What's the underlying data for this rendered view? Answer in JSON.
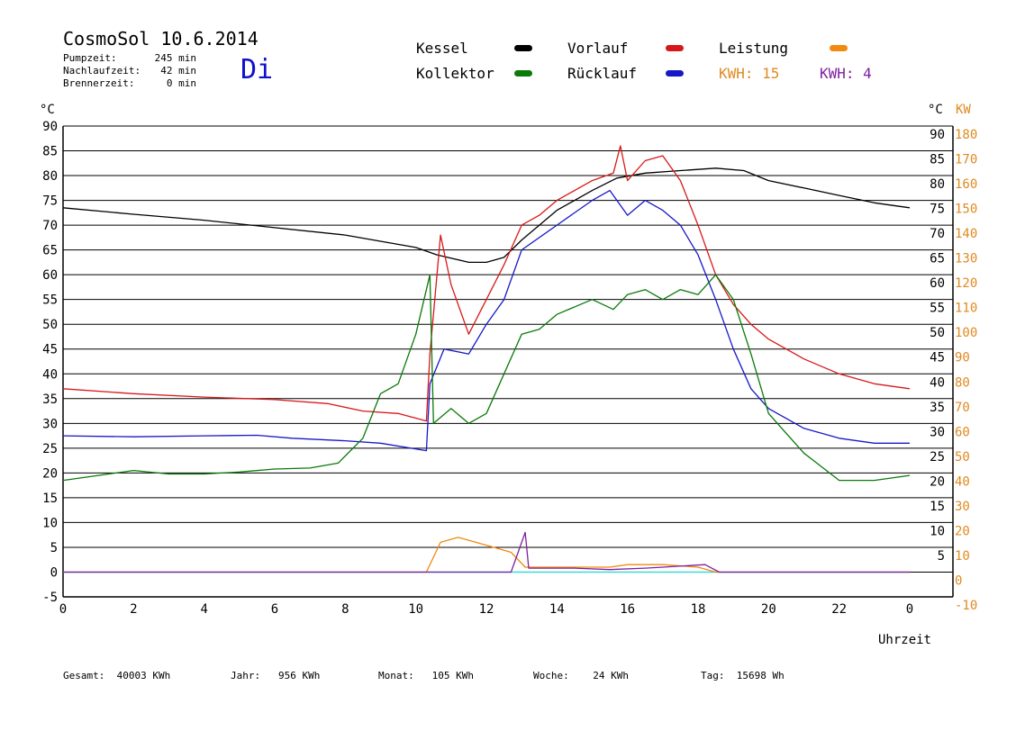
{
  "header": {
    "title": "CosmoSol 10.6.2014",
    "day": "Di",
    "pump_label": "Pumpzeit:",
    "pump_value": "245 min",
    "nachlauf_label": "Nachlaufzeit:",
    "nachlauf_value": "42 min",
    "brenner_label": "Brennerzeit:",
    "brenner_value": "0 min"
  },
  "legend": {
    "kessel": "Kessel",
    "kollektor": "Kollektor",
    "vorlauf": "Vorlauf",
    "ruecklauf": "Rücklauf",
    "leistung": "Leistung",
    "kwh_a": "KWH: 15",
    "kwh_b": "KWH: 4"
  },
  "colors": {
    "kessel": "#000000",
    "kollektor": "#0a7a0a",
    "vorlauf": "#d81818",
    "ruecklauf": "#1818c8",
    "leistung": "#f08a10",
    "kwh_b": "#8020a0",
    "baseline": "#40d8d8",
    "right_axis_kw": "#e08a20"
  },
  "footer": {
    "gesamt": "Gesamt:  40003 KWh",
    "jahr": "Jahr:   956 KWh",
    "monat": "Monat:   105 KWh",
    "woche": "Woche:    24 KWh",
    "tag": "Tag:  15698 Wh"
  },
  "chart_data": {
    "type": "line",
    "xlabel": "Uhrzeit",
    "ylabel_left": "°C",
    "ylabel_right_c": "°C",
    "ylabel_right_kw": "KW",
    "xlim": [
      0,
      24
    ],
    "ylim": [
      -5,
      90
    ],
    "x_ticks": [
      "0",
      "2",
      "4",
      "6",
      "8",
      "10",
      "12",
      "14",
      "16",
      "18",
      "20",
      "22",
      "0"
    ],
    "y_ticks_left": [
      "90",
      "85",
      "80",
      "75",
      "70",
      "65",
      "60",
      "55",
      "50",
      "45",
      "40",
      "35",
      "30",
      "25",
      "20",
      "15",
      "10",
      "5",
      "0",
      "-5"
    ],
    "y_ticks_right_c": [
      "90",
      "85",
      "80",
      "75",
      "70",
      "65",
      "60",
      "55",
      "50",
      "45",
      "40",
      "35",
      "30",
      "25",
      "20",
      "15",
      "10",
      "5"
    ],
    "y_ticks_right_kw": [
      "180",
      "170",
      "160",
      "150",
      "140",
      "130",
      "120",
      "110",
      "100",
      "90",
      "80",
      "70",
      "60",
      "50",
      "40",
      "30",
      "20",
      "10",
      "0",
      "-10"
    ],
    "grid": "horizontal",
    "series": [
      {
        "name": "Kessel",
        "color": "#000000",
        "points": [
          [
            0,
            73.5
          ],
          [
            2,
            72.2
          ],
          [
            4,
            71
          ],
          [
            6,
            69.5
          ],
          [
            8,
            68
          ],
          [
            10,
            65.5
          ],
          [
            10.6,
            64
          ],
          [
            11.5,
            62.5
          ],
          [
            12,
            62.5
          ],
          [
            12.5,
            63.5
          ],
          [
            13,
            67
          ],
          [
            13.5,
            70
          ],
          [
            14,
            73
          ],
          [
            15,
            77
          ],
          [
            15.7,
            79.5
          ],
          [
            16.5,
            80.5
          ],
          [
            17.5,
            81
          ],
          [
            18.5,
            81.5
          ],
          [
            19.3,
            81
          ],
          [
            20,
            79
          ],
          [
            21,
            77.5
          ],
          [
            22,
            76
          ],
          [
            23,
            74.5
          ],
          [
            24,
            73.5
          ]
        ]
      },
      {
        "name": "Vorlauf",
        "color": "#d81818",
        "points": [
          [
            0,
            37
          ],
          [
            2,
            36
          ],
          [
            4,
            35.3
          ],
          [
            6,
            34.8
          ],
          [
            7.5,
            34
          ],
          [
            8.5,
            32.5
          ],
          [
            9.5,
            32
          ],
          [
            10.3,
            30.5
          ],
          [
            10.4,
            44
          ],
          [
            10.7,
            68
          ],
          [
            11,
            58
          ],
          [
            11.5,
            48
          ],
          [
            12,
            55
          ],
          [
            12.5,
            62
          ],
          [
            13,
            70
          ],
          [
            13.5,
            72
          ],
          [
            14,
            75
          ],
          [
            15,
            79
          ],
          [
            15.6,
            80.5
          ],
          [
            15.8,
            86
          ],
          [
            16,
            79
          ],
          [
            16.5,
            83
          ],
          [
            17,
            84
          ],
          [
            17.5,
            79
          ],
          [
            18,
            70
          ],
          [
            18.5,
            60
          ],
          [
            19,
            54
          ],
          [
            19.5,
            50
          ],
          [
            20,
            47
          ],
          [
            21,
            43
          ],
          [
            22,
            40
          ],
          [
            23,
            38
          ],
          [
            24,
            37
          ]
        ]
      },
      {
        "name": "Rücklauf",
        "color": "#1818c8",
        "points": [
          [
            0,
            27.5
          ],
          [
            2,
            27.3
          ],
          [
            4,
            27.5
          ],
          [
            5.5,
            27.6
          ],
          [
            6.5,
            27
          ],
          [
            8,
            26.5
          ],
          [
            9,
            26
          ],
          [
            10.3,
            24.5
          ],
          [
            10.4,
            38
          ],
          [
            10.8,
            45
          ],
          [
            11.5,
            44
          ],
          [
            12,
            50
          ],
          [
            12.5,
            55
          ],
          [
            13,
            65
          ],
          [
            14,
            70
          ],
          [
            15,
            75
          ],
          [
            15.5,
            77
          ],
          [
            16,
            72
          ],
          [
            16.5,
            75
          ],
          [
            17,
            73
          ],
          [
            17.5,
            70
          ],
          [
            18,
            64
          ],
          [
            18.5,
            55
          ],
          [
            19,
            45
          ],
          [
            19.5,
            37
          ],
          [
            20,
            33
          ],
          [
            21,
            29
          ],
          [
            22,
            27
          ],
          [
            23,
            26
          ],
          [
            24,
            26
          ]
        ]
      },
      {
        "name": "Kollektor",
        "color": "#0a7a0a",
        "points": [
          [
            0,
            18.5
          ],
          [
            1,
            19.5
          ],
          [
            2,
            20.5
          ],
          [
            3,
            19.8
          ],
          [
            4,
            19.8
          ],
          [
            5,
            20.2
          ],
          [
            6,
            20.8
          ],
          [
            7,
            21
          ],
          [
            7.8,
            22
          ],
          [
            8.5,
            27
          ],
          [
            9,
            36
          ],
          [
            9.5,
            38
          ],
          [
            10,
            48
          ],
          [
            10.4,
            60
          ],
          [
            10.5,
            30
          ],
          [
            11,
            33
          ],
          [
            11.5,
            30
          ],
          [
            12,
            32
          ],
          [
            12.5,
            40
          ],
          [
            13,
            48
          ],
          [
            13.5,
            49
          ],
          [
            14,
            52
          ],
          [
            15,
            55
          ],
          [
            15.6,
            53
          ],
          [
            16,
            56
          ],
          [
            16.5,
            57
          ],
          [
            17,
            55
          ],
          [
            17.5,
            57
          ],
          [
            18,
            56
          ],
          [
            18.5,
            60
          ],
          [
            19,
            55
          ],
          [
            19.5,
            44
          ],
          [
            20,
            32
          ],
          [
            21,
            24
          ],
          [
            22,
            18.5
          ],
          [
            23,
            18.5
          ],
          [
            24,
            19.5
          ]
        ]
      },
      {
        "name": "Leistung",
        "color": "#f08a10",
        "points": [
          [
            0,
            0
          ],
          [
            10.3,
            0
          ],
          [
            10.7,
            6
          ],
          [
            11.2,
            7
          ],
          [
            11.7,
            6
          ],
          [
            12.2,
            5
          ],
          [
            12.7,
            4
          ],
          [
            13.1,
            1
          ],
          [
            14,
            1
          ],
          [
            15,
            1
          ],
          [
            15.5,
            1
          ],
          [
            16,
            1.5
          ],
          [
            17,
            1.5
          ],
          [
            18,
            1
          ],
          [
            18.5,
            0
          ],
          [
            24,
            0
          ]
        ]
      },
      {
        "name": "KWH: 4",
        "color": "#8020a0",
        "points": [
          [
            0,
            0
          ],
          [
            12.7,
            0
          ],
          [
            13.1,
            8
          ],
          [
            13.2,
            0.8
          ],
          [
            14.5,
            0.8
          ],
          [
            15.5,
            0.5
          ],
          [
            16.5,
            0.8
          ],
          [
            17,
            1
          ],
          [
            18.2,
            1.5
          ],
          [
            18.6,
            0
          ],
          [
            24,
            0
          ]
        ]
      }
    ]
  }
}
